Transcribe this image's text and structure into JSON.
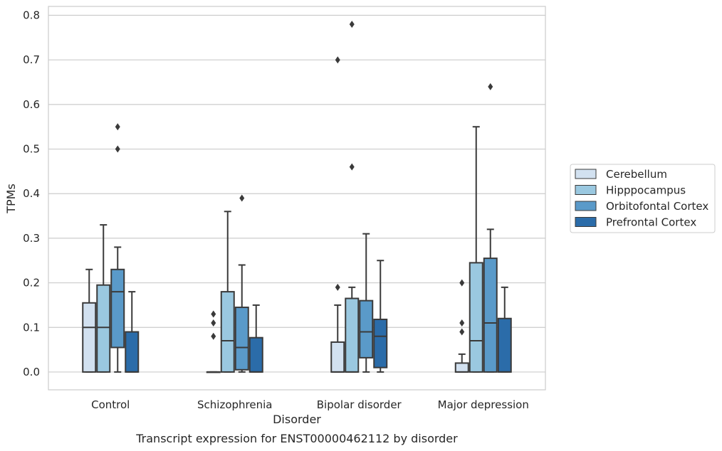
{
  "chart_data": {
    "type": "box",
    "xlabel": "Disorder",
    "ylabel": "TPMs",
    "caption": "Transcript expression for ENST00000462112 by disorder",
    "ylim": [
      -0.04,
      0.82
    ],
    "yticks": [
      "0.0",
      "0.1",
      "0.2",
      "0.3",
      "0.4",
      "0.5",
      "0.6",
      "0.7",
      "0.8"
    ],
    "grid": "horizontal",
    "legend_position": "right",
    "categories": [
      "Control",
      "Schizophrenia",
      "Bipolar disorder",
      "Major depression"
    ],
    "series": [
      {
        "name": "Cerebellum",
        "color": "#d2e1f0",
        "boxes": [
          {
            "whislo": 0.0,
            "q1": 0.0,
            "median": 0.1,
            "q3": 0.155,
            "whishi": 0.23,
            "fliers": []
          },
          {
            "whislo": 0.0,
            "q1": 0.0,
            "median": 0.0,
            "q3": 0.0,
            "whishi": 0.0,
            "fliers": [
              0.08,
              0.11,
              0.13
            ]
          },
          {
            "whislo": 0.0,
            "q1": 0.0,
            "median": 0.0,
            "q3": 0.067,
            "whishi": 0.15,
            "fliers": [
              0.19,
              0.7
            ]
          },
          {
            "whislo": 0.0,
            "q1": 0.0,
            "median": 0.0,
            "q3": 0.02,
            "whishi": 0.04,
            "fliers": [
              0.09,
              0.11,
              0.2
            ]
          }
        ]
      },
      {
        "name": "Hipppocampus",
        "color": "#9ac8e0",
        "boxes": [
          {
            "whislo": 0.0,
            "q1": 0.0,
            "median": 0.1,
            "q3": 0.195,
            "whishi": 0.33,
            "fliers": []
          },
          {
            "whislo": 0.0,
            "q1": 0.0,
            "median": 0.07,
            "q3": 0.18,
            "whishi": 0.36,
            "fliers": []
          },
          {
            "whislo": 0.0,
            "q1": 0.0,
            "median": 0.0,
            "q3": 0.165,
            "whishi": 0.19,
            "fliers": [
              0.46,
              0.78
            ]
          },
          {
            "whislo": 0.0,
            "q1": 0.0,
            "median": 0.07,
            "q3": 0.245,
            "whishi": 0.55,
            "fliers": []
          }
        ]
      },
      {
        "name": "Orbitofontal Cortex",
        "color": "#5a9ac9",
        "boxes": [
          {
            "whislo": 0.0,
            "q1": 0.055,
            "median": 0.18,
            "q3": 0.23,
            "whishi": 0.28,
            "fliers": [
              0.5,
              0.55
            ]
          },
          {
            "whislo": 0.0,
            "q1": 0.005,
            "median": 0.055,
            "q3": 0.145,
            "whishi": 0.24,
            "fliers": [
              0.39
            ]
          },
          {
            "whislo": 0.0,
            "q1": 0.032,
            "median": 0.09,
            "q3": 0.16,
            "whishi": 0.31,
            "fliers": []
          },
          {
            "whislo": 0.0,
            "q1": 0.0,
            "median": 0.11,
            "q3": 0.255,
            "whishi": 0.32,
            "fliers": [
              0.64
            ]
          }
        ]
      },
      {
        "name": "Prefrontal Cortex",
        "color": "#2b6ca9",
        "boxes": [
          {
            "whislo": 0.0,
            "q1": 0.0,
            "median": 0.0,
            "q3": 0.09,
            "whishi": 0.18,
            "fliers": []
          },
          {
            "whislo": 0.0,
            "q1": 0.0,
            "median": 0.0,
            "q3": 0.077,
            "whishi": 0.15,
            "fliers": []
          },
          {
            "whislo": 0.0,
            "q1": 0.01,
            "median": 0.08,
            "q3": 0.118,
            "whishi": 0.25,
            "fliers": []
          },
          {
            "whislo": 0.0,
            "q1": 0.0,
            "median": 0.0,
            "q3": 0.12,
            "whishi": 0.19,
            "fliers": []
          }
        ]
      }
    ]
  }
}
